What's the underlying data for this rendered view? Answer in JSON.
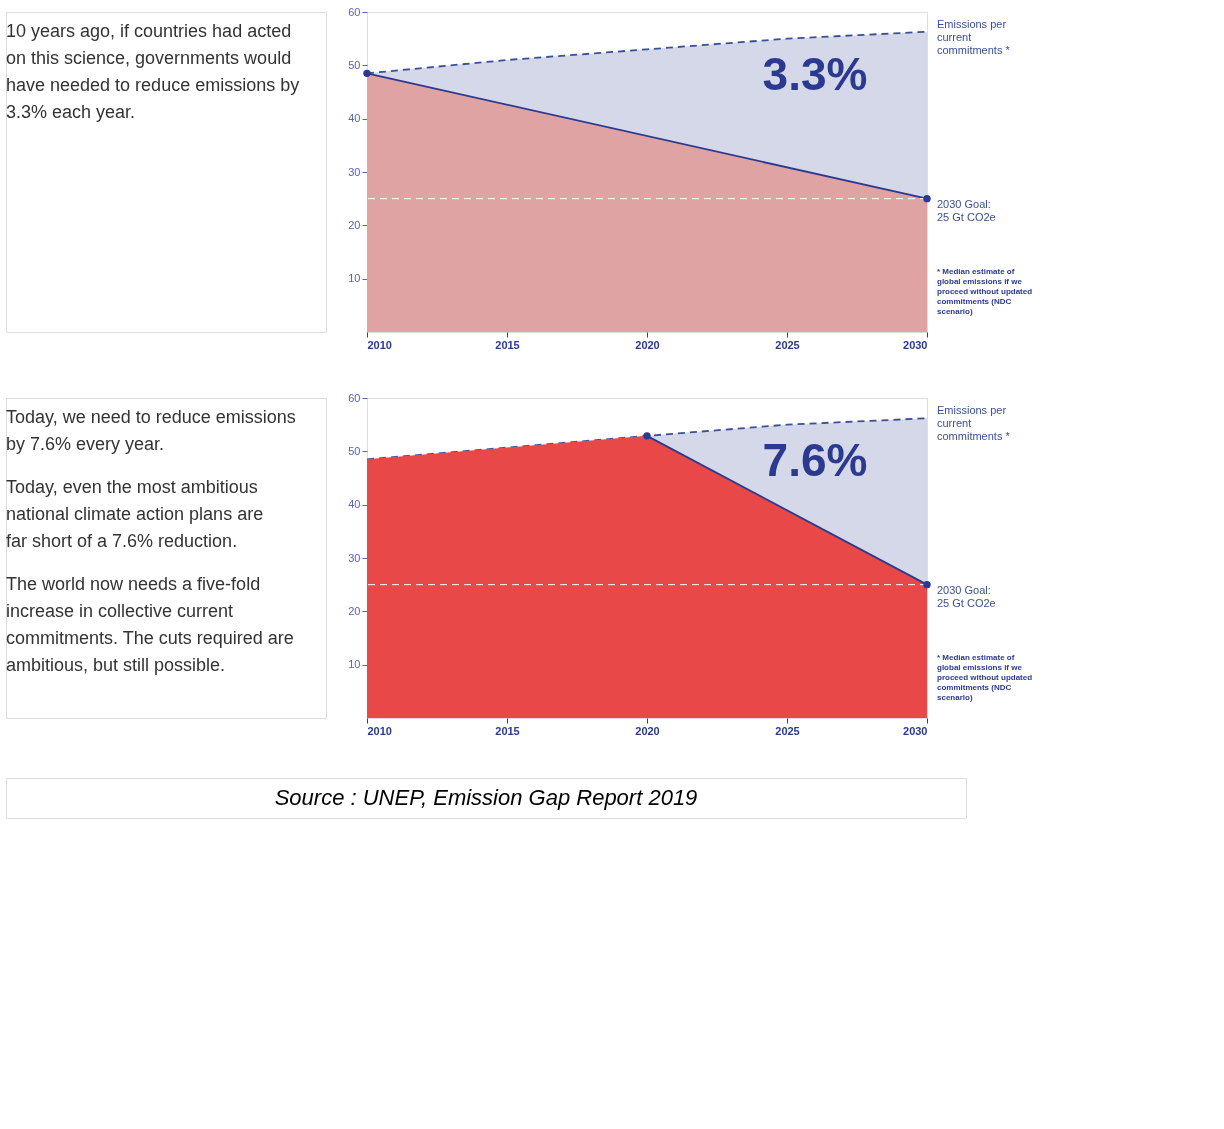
{
  "chart_data": [
    {
      "type": "area",
      "xlim": [
        2010,
        2030
      ],
      "ylim": [
        0,
        60
      ],
      "xticks": [
        2010,
        2015,
        2020,
        2025,
        2030
      ],
      "yticks": [
        10,
        20,
        30,
        40,
        50,
        60
      ],
      "series": [
        {
          "type": "line",
          "name": "Emissions per current commitments *",
          "color": "#3a4f96",
          "line_style": "dashed",
          "x": [
            2010,
            2015,
            2020,
            2025,
            2030
          ],
          "values": [
            48.5,
            51,
            53,
            55,
            56.3
          ],
          "lower": [
            48.5,
            42.6,
            36.8,
            30.9,
            25
          ],
          "upper": [
            48.5,
            51,
            53,
            55,
            56.3
          ]
        },
        {
          "color": "#e0a3a3",
          "x": [
            2010,
            2030
          ],
          "values": [
            48.5,
            25
          ]
        },
        {
          "type": "line",
          "color": "#2b3990",
          "marker": "circle",
          "x": [
            2010,
            2030
          ],
          "values": [
            48.5,
            25
          ]
        }
      ],
      "ref_lines": [
        {
          "axis": "y",
          "value": 25,
          "label": "2030 Goal: 25 Gt CO2e",
          "color": "#ffffff",
          "line_style": "dashed"
        }
      ],
      "annotations": [
        "3.3%",
        "* Median estimate of global emissions if we proceed without updated commitments (NDC scenario)",
        "10 years ago, if countries had acted on this science, governments would have needed to reduce emissions by 3.3% each year."
      ]
    },
    {
      "type": "area",
      "xlim": [
        2010,
        2030
      ],
      "ylim": [
        0,
        60
      ],
      "xticks": [
        2010,
        2015,
        2020,
        2025,
        2030
      ],
      "yticks": [
        10,
        20,
        30,
        40,
        50,
        60
      ],
      "series": [
        {
          "type": "line",
          "name": "Emissions per current commitments *",
          "color": "#3a4f96",
          "line_style": "dashed",
          "x": [
            2010,
            2015,
            2020,
            2025,
            2030
          ],
          "values": [
            48.5,
            50.7,
            52.9,
            55,
            56.2
          ],
          "lower": [
            48.5,
            50.7,
            52.9,
            39,
            25
          ],
          "upper": [
            48.5,
            50.7,
            52.9,
            55,
            56.2
          ]
        },
        {
          "color": "#e84848",
          "x": [
            2010,
            2015,
            2020,
            2030
          ],
          "values": [
            48.5,
            50.7,
            52.9,
            25
          ]
        },
        {
          "type": "line",
          "color": "#2b3990",
          "marker": "circle",
          "x": [
            2020,
            2030
          ],
          "values": [
            52.9,
            25
          ]
        }
      ],
      "ref_lines": [
        {
          "axis": "y",
          "value": 25,
          "label": "2030 Goal: 25 Gt CO2e",
          "color": "#ffffff",
          "line_style": "dashed"
        }
      ],
      "annotations": [
        "7.6%",
        "* Median estimate of global emissions if we proceed without updated commitments (NDC scenario)",
        "Today, we need to reduce emissions by 7.6% every year.",
        "Today, even the most ambitious national climate action plans are far short of a 7.6% reduction.",
        "The world now needs a five-fold increase in collective current commitments. The cuts required are ambitious, but still possible.",
        "Source : UNEP, Emission Gap Report 2019"
      ]
    }
  ]
}
